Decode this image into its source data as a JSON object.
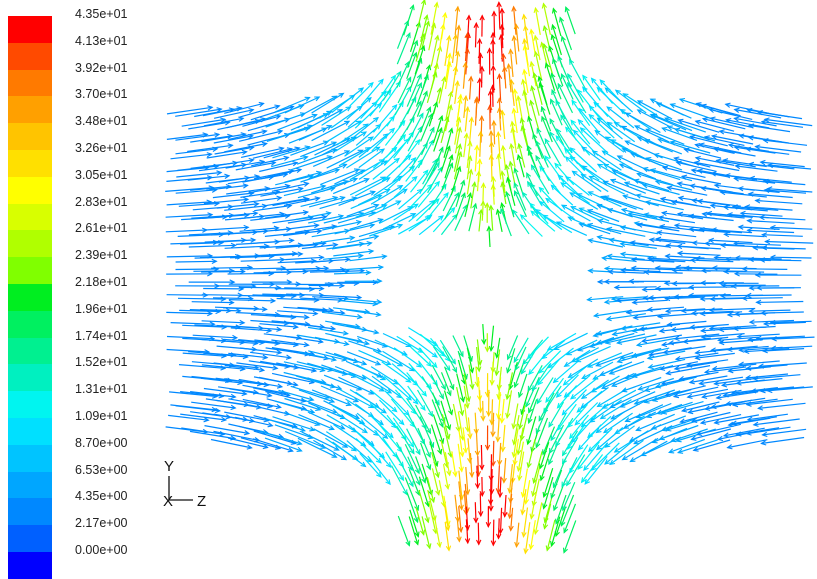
{
  "colorbar": {
    "labels": [
      "4.35e+01",
      "4.13e+01",
      "3.92e+01",
      "3.70e+01",
      "3.48e+01",
      "3.26e+01",
      "3.05e+01",
      "2.83e+01",
      "2.61e+01",
      "2.39e+01",
      "2.18e+01",
      "1.96e+01",
      "1.74e+01",
      "1.52e+01",
      "1.31e+01",
      "1.09e+01",
      "8.70e+00",
      "6.53e+00",
      "4.35e+00",
      "2.17e+00",
      "0.00e+00"
    ],
    "colors": [
      "#ff0000",
      "#ff4a00",
      "#ff7a00",
      "#ffa000",
      "#ffc400",
      "#ffe000",
      "#ffff00",
      "#d8ff00",
      "#b0ff00",
      "#80ff00",
      "#00ee20",
      "#00f060",
      "#00f090",
      "#00f0c0",
      "#00f5f0",
      "#00e0ff",
      "#00c4ff",
      "#00a6ff",
      "#0088ff",
      "#0060ff",
      "#0000ff"
    ]
  },
  "triad": {
    "up": "Y",
    "right": "Z"
  },
  "chart_data": {
    "type": "vector-field",
    "scalar_range": [
      0.0,
      43.5
    ],
    "colormap_ticks": [
      43.5,
      41.3,
      39.2,
      37.0,
      34.8,
      32.6,
      30.5,
      28.3,
      26.1,
      23.9,
      21.8,
      19.6,
      17.4,
      15.2,
      13.1,
      10.9,
      8.7,
      6.53,
      4.35,
      2.17,
      0.0
    ],
    "flow_pattern": "two opposing horizontal streams meeting at the center and turning up and down"
  }
}
